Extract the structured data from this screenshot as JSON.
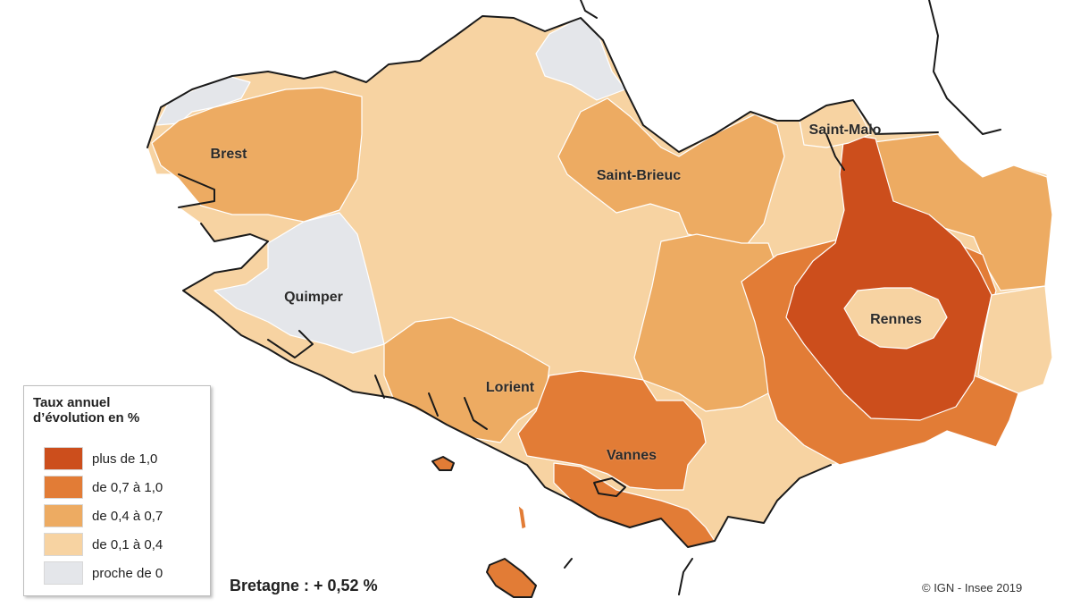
{
  "legend": {
    "title_line1": "Taux annuel",
    "title_line2": "d’évolution en %",
    "classes": [
      {
        "label": "plus de 1,0",
        "color": "#cc4e1c"
      },
      {
        "label": "de 0,7 à 1,0",
        "color": "#e27c36"
      },
      {
        "label": "de 0,4 à 0,7",
        "color": "#edab62"
      },
      {
        "label": "de 0,1 à 0,4",
        "color": "#f7d3a2"
      },
      {
        "label": "proche de 0",
        "color": "#e4e6ea"
      }
    ]
  },
  "cities": {
    "brest": "Brest",
    "quimper": "Quimper",
    "lorient": "Lorient",
    "vannes": "Vannes",
    "saint_brieuc": "Saint-Brieuc",
    "saint_malo": "Saint-Malo",
    "rennes": "Rennes"
  },
  "summary": "Bretagne : + 0,52 %",
  "credit": "© IGN - Insee 2019",
  "colors": {
    "coast": "#1a1a1a",
    "zone_border": "#ffffff"
  }
}
